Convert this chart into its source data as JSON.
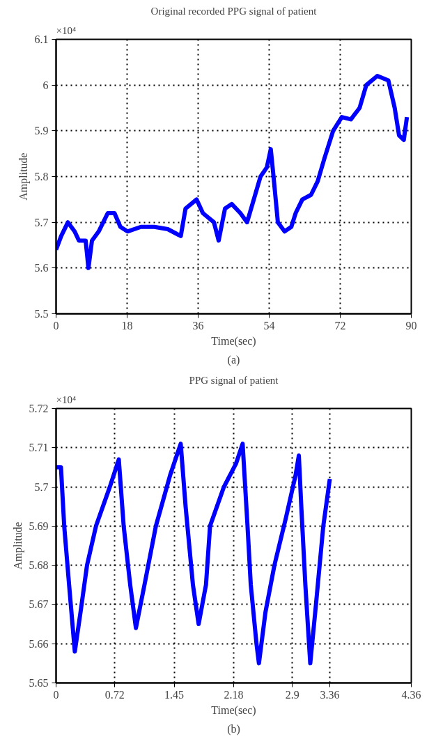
{
  "chart_data": [
    {
      "type": "line",
      "title": "Original recorded PPG signal of patient",
      "xlabel": "Time(sec)",
      "ylabel": "Amplitude",
      "annotations": [
        "×10⁴",
        "(a)"
      ],
      "grid": true,
      "line_style": "solid",
      "marker": "none",
      "xlim": [
        0,
        90
      ],
      "xticks": [
        0,
        18,
        36,
        54,
        72,
        90
      ],
      "ylim": [
        5.5,
        6.1
      ],
      "yticks": [
        5.5,
        5.6,
        5.7,
        5.8,
        5.9,
        {
          "value": 6.0,
          "label": "6"
        },
        6.1
      ],
      "series": [
        {
          "color": "#0000ff",
          "x": [
            0,
            1.3,
            3,
            4.7,
            5.8,
            7.5,
            8.2,
            9.1,
            10.8,
            13.1,
            14.8,
            16.3,
            18.1,
            21.5,
            24.9,
            28.3,
            31.6,
            32.8,
            35.6,
            37.2,
            40.0,
            41.2,
            42.8,
            44.5,
            46.7,
            48.4,
            50.1,
            51.8,
            53.4,
            54.4,
            55.1,
            56.2,
            57.9,
            59.6,
            60.7,
            62.4,
            64.6,
            66.3,
            68.0,
            70.2,
            72.4,
            74.7,
            76.9,
            78.6,
            81.4,
            84.2,
            85.8,
            86.9,
            88.1,
            88.9
          ],
          "values": [
            5.64,
            5.67,
            5.7,
            5.68,
            5.66,
            5.66,
            5.6,
            5.66,
            5.68,
            5.72,
            5.72,
            5.69,
            5.68,
            5.69,
            5.69,
            5.685,
            5.67,
            5.73,
            5.75,
            5.72,
            5.7,
            5.66,
            5.73,
            5.74,
            5.72,
            5.7,
            5.75,
            5.8,
            5.82,
            5.86,
            5.8,
            5.7,
            5.68,
            5.69,
            5.72,
            5.75,
            5.76,
            5.79,
            5.84,
            5.9,
            5.93,
            5.925,
            5.95,
            6.0,
            6.02,
            6.01,
            5.95,
            5.89,
            5.88,
            5.93
          ]
        }
      ]
    },
    {
      "type": "line",
      "title": "PPG signal of patient",
      "xlabel": "Time(sec)",
      "ylabel": "Amplitude",
      "annotations": [
        "×10⁴",
        "(b)"
      ],
      "grid": true,
      "line_style": "solid",
      "marker": "none",
      "xlim": [
        0,
        4.36
      ],
      "xticks": [
        0,
        0.72,
        1.45,
        2.18,
        2.9,
        3.36,
        4.36
      ],
      "ylim": [
        5.65,
        5.72
      ],
      "yticks": [
        5.65,
        5.66,
        5.67,
        5.68,
        5.69,
        {
          "value": 5.7,
          "label": "5.7"
        },
        5.71,
        5.72
      ],
      "series": [
        {
          "color": "#0000ff",
          "x": [
            0,
            0.06,
            0.1,
            0.16,
            0.23,
            0.3,
            0.38,
            0.49,
            0.66,
            0.77,
            0.83,
            0.91,
            0.98,
            1.085,
            1.225,
            1.4,
            1.53,
            1.59,
            1.68,
            1.75,
            1.84,
            1.89,
            2.06,
            2.21,
            2.29,
            2.35,
            2.39,
            2.46,
            2.49,
            2.57,
            2.68,
            2.82,
            2.94,
            2.98,
            3.01,
            3.06,
            3.12,
            3.19,
            3.28,
            3.36
          ],
          "values": [
            5.705,
            5.705,
            5.69,
            5.675,
            5.658,
            5.668,
            5.68,
            5.69,
            5.7,
            5.707,
            5.69,
            5.675,
            5.664,
            5.675,
            5.69,
            5.703,
            5.711,
            5.695,
            5.675,
            5.665,
            5.675,
            5.69,
            5.7,
            5.706,
            5.711,
            5.69,
            5.675,
            5.66,
            5.655,
            5.668,
            5.68,
            5.692,
            5.703,
            5.708,
            5.695,
            5.675,
            5.655,
            5.67,
            5.69,
            5.702
          ]
        }
      ]
    }
  ]
}
